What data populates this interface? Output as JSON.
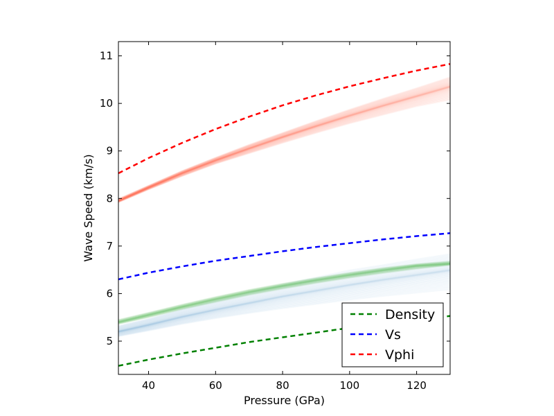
{
  "chart_data": {
    "type": "line",
    "xlabel": "Pressure (GPa)",
    "ylabel": "Wave Speed (km/s)",
    "xlim": [
      31,
      130
    ],
    "ylim": [
      4.3,
      11.3
    ],
    "xticks": [
      40,
      60,
      80,
      100,
      120
    ],
    "yticks": [
      5,
      6,
      7,
      8,
      9,
      10,
      11
    ],
    "grid": false,
    "legend_position": "lower-right",
    "series": [
      {
        "name": "Density",
        "color": "#008000",
        "style": "dashed",
        "x": [
          31,
          40,
          50,
          60,
          70,
          80,
          90,
          100,
          110,
          120,
          130
        ],
        "y": [
          4.48,
          4.61,
          4.74,
          4.86,
          4.98,
          5.08,
          5.18,
          5.28,
          5.37,
          5.45,
          5.53
        ]
      },
      {
        "name": "Vs",
        "color": "#0000ff",
        "style": "dashed",
        "x": [
          31,
          40,
          50,
          60,
          70,
          80,
          90,
          100,
          110,
          120,
          130
        ],
        "y": [
          6.3,
          6.44,
          6.57,
          6.69,
          6.79,
          6.89,
          6.98,
          7.06,
          7.14,
          7.21,
          7.27
        ]
      },
      {
        "name": "Vphi",
        "color": "#ff0000",
        "style": "dashed",
        "x": [
          31,
          40,
          50,
          60,
          70,
          80,
          90,
          100,
          110,
          120,
          130
        ],
        "y": [
          8.53,
          8.85,
          9.17,
          9.46,
          9.72,
          9.96,
          10.17,
          10.36,
          10.53,
          10.69,
          10.83
        ]
      }
    ],
    "bands": [
      {
        "kind": "ensemble",
        "color": "#fb6a4a",
        "x": [
          31,
          40,
          50,
          60,
          70,
          80,
          90,
          100,
          110,
          120,
          130
        ],
        "y_low": [
          7.92,
          8.19,
          8.47,
          8.73,
          8.95,
          9.17,
          9.38,
          9.58,
          9.76,
          9.94,
          10.08
        ],
        "y_center": [
          7.95,
          8.23,
          8.53,
          8.8,
          9.05,
          9.29,
          9.52,
          9.74,
          9.95,
          10.15,
          10.35
        ],
        "y_high": [
          7.99,
          8.27,
          8.58,
          8.86,
          9.13,
          9.38,
          9.63,
          9.87,
          10.1,
          10.32,
          10.55
        ]
      },
      {
        "kind": "ensemble",
        "color": "#6baed6",
        "x": [
          31,
          40,
          50,
          60,
          70,
          80,
          90,
          100,
          110,
          120,
          130
        ],
        "y_low": [
          5.1,
          5.22,
          5.36,
          5.48,
          5.59,
          5.69,
          5.78,
          5.87,
          5.95,
          6.02,
          6.09
        ],
        "y_center": [
          5.2,
          5.34,
          5.51,
          5.66,
          5.8,
          5.94,
          6.06,
          6.18,
          6.29,
          6.39,
          6.49
        ],
        "y_high": [
          5.32,
          5.47,
          5.67,
          5.85,
          6.02,
          6.19,
          6.34,
          6.49,
          6.6,
          6.72,
          6.83
        ]
      },
      {
        "kind": "ensemble",
        "color": "#74c476",
        "x": [
          31,
          40,
          50,
          60,
          70,
          80,
          90,
          100,
          110,
          120,
          130
        ],
        "y_low": [
          5.36,
          5.5,
          5.67,
          5.82,
          5.97,
          6.1,
          6.22,
          6.33,
          6.43,
          6.52,
          6.6
        ],
        "y_center": [
          5.4,
          5.55,
          5.72,
          5.88,
          6.03,
          6.16,
          6.28,
          6.39,
          6.49,
          6.58,
          6.63
        ],
        "y_high": [
          5.45,
          5.6,
          5.77,
          5.93,
          6.08,
          6.21,
          6.33,
          6.44,
          6.54,
          6.62,
          6.68
        ]
      }
    ]
  }
}
